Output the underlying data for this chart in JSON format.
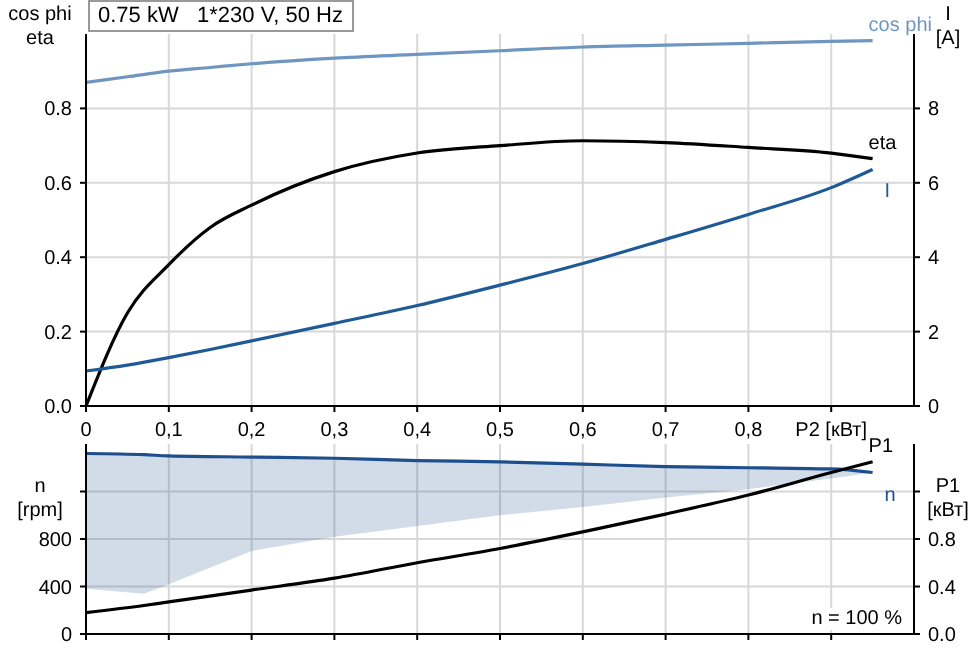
{
  "chart_data": [
    {
      "type": "line",
      "title": "0.75 kW   1*230 V, 50 Hz",
      "ylabel": "cos phi\neta",
      "y2label": "I\n[A]",
      "x": [
        0,
        0.05,
        0.1,
        0.15,
        0.2,
        0.3,
        0.4,
        0.5,
        0.6,
        0.7,
        0.8,
        0.9,
        0.95
      ],
      "xlim": [
        0,
        1
      ],
      "xticks": [
        0,
        {
          "value": 0.1,
          "label": "0,1"
        },
        {
          "value": 0.2,
          "label": "0,2"
        },
        {
          "value": 0.3,
          "label": "0,3"
        },
        {
          "value": 0.4,
          "label": "0,4"
        },
        {
          "value": 0.5,
          "label": "0,5"
        },
        {
          "value": 0.6,
          "label": "0,6"
        },
        {
          "value": 0.7,
          "label": "0,7"
        },
        {
          "value": 0.8,
          "label": "0,8"
        },
        {
          "value": 0.9,
          "label": "P2 [кВт]"
        }
      ],
      "ylim": [
        0,
        1
      ],
      "yticks": [
        {
          "value": 0,
          "label": "0.0"
        },
        0.2,
        0.4,
        0.6,
        0.8
      ],
      "y2lim": [
        0,
        10
      ],
      "y2ticks": [
        0,
        2,
        4,
        6,
        8
      ],
      "grid": true,
      "series": [
        {
          "name": "cos phi",
          "color": "#6f96c0",
          "values": [
            0.87,
            0.885,
            0.9,
            0.91,
            0.92,
            0.935,
            0.945,
            0.955,
            0.965,
            0.97,
            0.975,
            0.98,
            0.982
          ]
        },
        {
          "name": "eta",
          "color": "#000000",
          "values": [
            0,
            0.25,
            0.38,
            0.48,
            0.54,
            0.63,
            0.68,
            0.7,
            0.713,
            0.708,
            0.695,
            0.68,
            0.665
          ]
        },
        {
          "name": "I",
          "color": "#1f5a96",
          "axis": "y2",
          "values": [
            0.94,
            1.1,
            1.3,
            1.52,
            1.75,
            2.22,
            2.7,
            3.25,
            3.83,
            4.48,
            5.15,
            5.87,
            6.36
          ]
        }
      ]
    },
    {
      "type": "line",
      "ylabel": "n\n[rpm]",
      "y2label": "P1\n[кВт]",
      "x": [
        0,
        0.07,
        0.1,
        0.2,
        0.3,
        0.4,
        0.5,
        0.6,
        0.7,
        0.8,
        0.9,
        0.95
      ],
      "xlim": [
        0,
        1
      ],
      "xticks": [
        0,
        0.1,
        0.2,
        0.3,
        0.4,
        0.5,
        0.6,
        0.7,
        0.8,
        0.9
      ],
      "tick_labels": "y",
      "ylim": [
        0,
        1600
      ],
      "yticks": [
        0,
        400,
        800,
        {
          "value": 1200,
          "label": null
        }
      ],
      "y2lim": [
        0,
        1.6
      ],
      "y2ticks": [
        {
          "value": 0,
          "label": "0.0"
        },
        0.4,
        0.8,
        {
          "value": 1.2,
          "label": null
        }
      ],
      "grid": true,
      "annotations": [
        "n = 100 %"
      ],
      "series": [
        {
          "name": "n",
          "color": "#1f4e8c",
          "values": [
            1520,
            1510,
            1500,
            1490,
            1480,
            1460,
            1450,
            1430,
            1410,
            1400,
            1390,
            1360
          ],
          "lower": [
            380,
            340,
            420,
            700,
            820,
            910,
            1000,
            1070,
            1150,
            1220,
            1310,
            1360
          ],
          "upper": [
            1520,
            1510,
            1500,
            1490,
            1480,
            1460,
            1450,
            1430,
            1410,
            1400,
            1390,
            1360
          ]
        },
        {
          "name": "P1",
          "color": "#000000",
          "axis": "y2",
          "values": [
            0.18,
            0.24,
            0.27,
            0.37,
            0.47,
            0.6,
            0.72,
            0.86,
            1.01,
            1.17,
            1.36,
            1.45
          ]
        }
      ]
    }
  ]
}
